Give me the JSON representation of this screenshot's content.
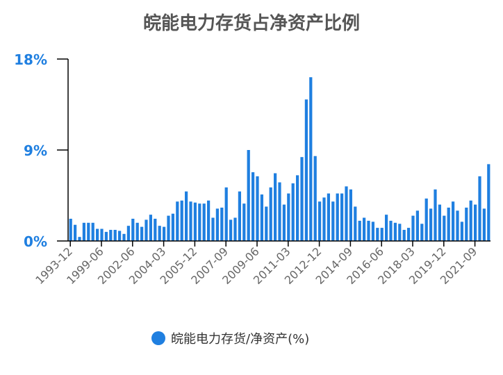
{
  "chart_data": {
    "type": "bar",
    "title": "皖能电力存货占净资产比例",
    "xlabel": "",
    "ylabel": "",
    "ylim": [
      0,
      18
    ],
    "y_ticks": [
      "0%",
      "9%",
      "18%"
    ],
    "x_tick_labels": [
      "1993-12",
      "1999-06",
      "2002-06",
      "2004-03",
      "2005-12",
      "2007-09",
      "2009-06",
      "2011-03",
      "2012-12",
      "2014-09",
      "2016-06",
      "2018-03",
      "2019-12",
      "2021-09"
    ],
    "legend_position": "bottom",
    "grid": false,
    "colors": {
      "bar": "#1f7fe0",
      "axis": "#000000"
    },
    "series": [
      {
        "name": "皖能电力存货/净资产(%)",
        "values": [
          2.2,
          1.6,
          0.4,
          1.8,
          1.8,
          1.8,
          1.2,
          1.2,
          0.9,
          1.1,
          1.1,
          1.0,
          0.7,
          1.5,
          2.2,
          1.8,
          1.4,
          2.1,
          2.6,
          2.2,
          1.5,
          1.4,
          2.5,
          2.7,
          3.9,
          4.0,
          4.9,
          3.9,
          3.8,
          3.7,
          3.7,
          4.0,
          2.3,
          3.2,
          3.3,
          5.3,
          2.1,
          2.3,
          4.9,
          3.7,
          9.0,
          6.8,
          6.4,
          4.6,
          3.4,
          5.3,
          6.7,
          5.8,
          3.6,
          4.7,
          5.7,
          6.5,
          8.3,
          14.0,
          16.2,
          8.4,
          3.9,
          4.3,
          4.7,
          3.9,
          4.7,
          4.7,
          5.4,
          5.1,
          3.4,
          2.0,
          2.3,
          2.0,
          1.9,
          1.3,
          1.3,
          2.6,
          2.0,
          1.8,
          1.7,
          1.1,
          1.3,
          2.5,
          3.0,
          1.7,
          4.2,
          3.2,
          5.1,
          3.6,
          2.5,
          3.3,
          3.9,
          3.0,
          1.9,
          3.3,
          4.0,
          3.6,
          6.4,
          3.2,
          7.6
        ]
      }
    ]
  }
}
